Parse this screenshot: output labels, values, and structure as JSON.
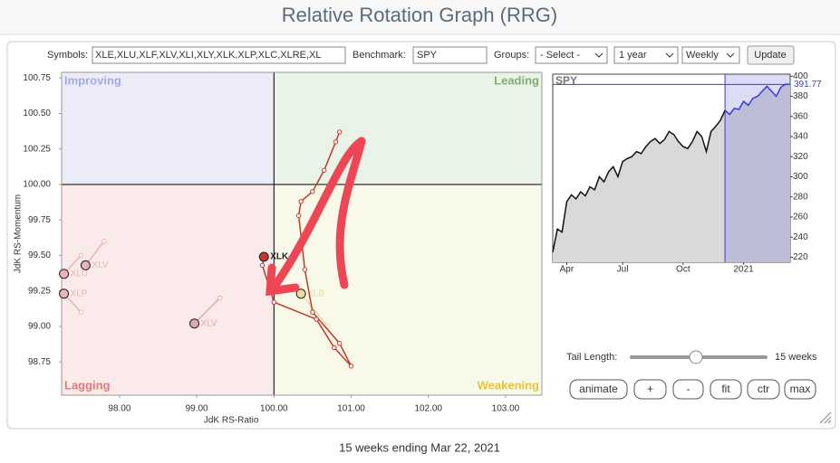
{
  "header": {
    "title": "Relative Rotation Graph (RRG)"
  },
  "controls": {
    "symbols_label": "Symbols:",
    "symbols_value": "XLE,XLU,XLF,XLV,XLI,XLY,XLK,XLP,XLC,XLRE,XL",
    "benchmark_label": "Benchmark:",
    "benchmark_value": "SPY",
    "groups_label": "Groups:",
    "groups_value": "- Select -",
    "period": "1 year",
    "frequency": "Weekly",
    "update": "Update"
  },
  "chart_data": [
    {
      "type": "scatter",
      "xlabel": "JdK RS-Ratio",
      "ylabel": "JdK RS-Momentum",
      "xlim": [
        97.25,
        103.47
      ],
      "ylim": [
        98.515,
        100.79
      ],
      "center": [
        100,
        100
      ],
      "xticks": [
        {
          "value": 98,
          "label": "98.00"
        },
        {
          "value": 99,
          "label": "99.00"
        },
        {
          "value": 100,
          "label": "100.00"
        },
        {
          "value": 101,
          "label": "101.00"
        },
        {
          "value": 102,
          "label": "102.00"
        },
        {
          "value": 103,
          "label": "103.00"
        }
      ],
      "yticks": [
        {
          "value": 98.75,
          "label": "98.75"
        },
        {
          "value": 99,
          "label": "99.00"
        },
        {
          "value": 99.25,
          "label": "99.25"
        },
        {
          "value": 99.5,
          "label": "99.50"
        },
        {
          "value": 99.75,
          "label": "99.75"
        },
        {
          "value": 100,
          "label": "100.00"
        },
        {
          "value": 100.25,
          "label": "100.25"
        },
        {
          "value": 100.5,
          "label": "100.50"
        },
        {
          "value": 100.75,
          "label": "100.75"
        }
      ],
      "quadrants": {
        "top_left": "Improving",
        "top_right": "Leading",
        "bottom_left": "Lagging",
        "bottom_right": "Weakening"
      },
      "series": [
        {
          "name": "XLU",
          "color": "#e8b4b4",
          "x": [
            97.5,
            97.28
          ],
          "y": [
            99.5,
            99.37
          ]
        },
        {
          "name": "XLV",
          "color": "#e8b4b4",
          "x": [
            97.8,
            97.56
          ],
          "y": [
            99.6,
            99.43
          ]
        },
        {
          "name": "XLP",
          "color": "#e8b4b4",
          "x": [
            97.5,
            97.28
          ],
          "y": [
            99.1,
            99.23
          ]
        },
        {
          "name": "XLV",
          "color": "#e0a8a8",
          "x": [
            99.3,
            98.97
          ],
          "y": [
            99.2,
            99.02
          ]
        },
        {
          "name": "XLB",
          "color": "#e6dca0",
          "x": [
            100.7,
            100.35
          ],
          "y": [
            99.0,
            99.23
          ]
        },
        {
          "name": "XLK",
          "color": "#c0392b",
          "x": [
            100.85,
            100.8,
            100.65,
            100.5,
            100.35,
            100.32,
            100.4,
            100.5,
            100.85,
            101.0,
            100.78,
            100.55,
            100.0,
            99.85,
            99.87
          ],
          "y": [
            100.37,
            100.3,
            100.1,
            99.95,
            99.88,
            99.78,
            99.4,
            99.1,
            98.88,
            98.72,
            98.85,
            99.05,
            99.17,
            99.43,
            99.49
          ]
        }
      ]
    },
    {
      "type": "line",
      "title": "SPY",
      "categories": [
        null,
        null,
        null,
        "Apr",
        null,
        null,
        null,
        null,
        null,
        null,
        null,
        null,
        null,
        null,
        null,
        "Jul",
        null,
        null,
        null,
        null,
        null,
        null,
        null,
        null,
        null,
        null,
        null,
        null,
        "Oct",
        null,
        null,
        null,
        null,
        null,
        null,
        null,
        null,
        null,
        null,
        null,
        null,
        "2021",
        null,
        null,
        null,
        null,
        null,
        null,
        null,
        null,
        null,
        null
      ],
      "ylim": [
        215,
        402
      ],
      "yticks": [
        220,
        240,
        260,
        280,
        300,
        320,
        340,
        360,
        380,
        400
      ],
      "highlight": {
        "from": 37,
        "color": "#3b3bd1"
      },
      "series": [
        {
          "name": "SPY",
          "color": "#111111",
          "values": [
            225,
            248,
            245,
            275,
            282,
            278,
            285,
            281,
            290,
            287,
            300,
            295,
            305,
            310,
            300,
            315,
            318,
            320,
            325,
            323,
            330,
            335,
            338,
            333,
            337,
            345,
            342,
            335,
            330,
            328,
            335,
            345,
            340,
            325,
            345,
            350,
            356,
            366,
            362,
            368,
            367,
            375,
            371,
            378,
            380,
            385,
            390,
            385,
            380,
            389,
            392,
            391.77
          ]
        }
      ]
    }
  ],
  "tail": {
    "label": "Tail Length:",
    "value_label": "15 weeks"
  },
  "buttons": [
    "animate",
    "+",
    "-",
    "fit",
    "ctr",
    "max"
  ],
  "footer": "15 weeks ending Mar 22, 2021"
}
